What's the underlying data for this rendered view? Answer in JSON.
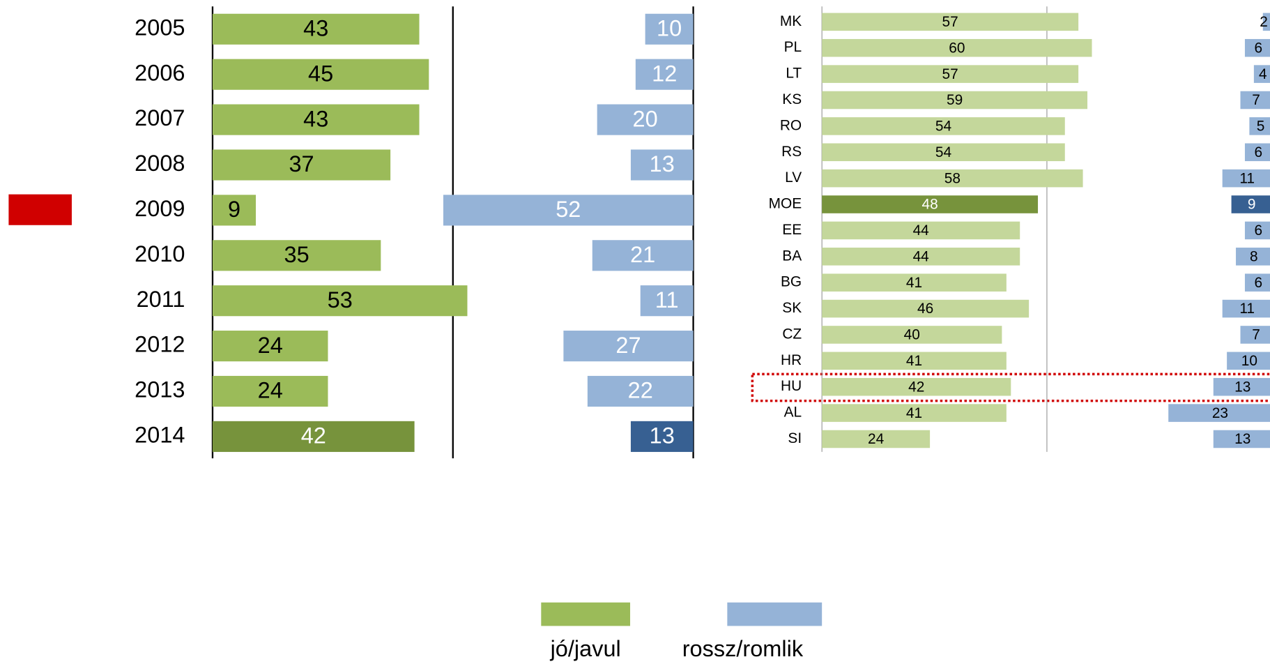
{
  "chart_data": [
    {
      "type": "diverging-bar",
      "categories": [
        "2005",
        "2006",
        "2007",
        "2008",
        "2009",
        "2010",
        "2011",
        "2012",
        "2013",
        "2014"
      ],
      "series": [
        {
          "name": "jó/javul",
          "color": "#9bbb59",
          "highlight_color": "#77933c",
          "values": [
            43,
            45,
            43,
            37,
            9,
            35,
            53,
            24,
            24,
            42
          ]
        },
        {
          "name": "rossz/romlik",
          "color": "#95b3d7",
          "highlight_color": "#376092",
          "values": [
            10,
            12,
            20,
            13,
            52,
            21,
            11,
            27,
            22,
            13
          ]
        }
      ],
      "highlight": 9,
      "xlim": [
        0,
        100
      ],
      "xticks": [
        0,
        50,
        100
      ]
    },
    {
      "type": "diverging-bar",
      "categories": [
        "MK",
        "PL",
        "LT",
        "KS",
        "RO",
        "RS",
        "LV",
        "MOE",
        "EE",
        "BA",
        "BG",
        "SK",
        "CZ",
        "HR",
        "HU",
        "AL",
        "SI"
      ],
      "series": [
        {
          "name": "jó/javul",
          "color": "#c4d79b",
          "highlight_color": "#77933c",
          "values": [
            57,
            60,
            57,
            59,
            54,
            54,
            58,
            48,
            44,
            44,
            41,
            46,
            40,
            41,
            42,
            41,
            24
          ]
        },
        {
          "name": "rossz/romlik",
          "color": "#95b3d7",
          "highlight_color": "#376092",
          "values": [
            2,
            6,
            4,
            7,
            5,
            6,
            11,
            9,
            6,
            8,
            6,
            11,
            7,
            10,
            13,
            23,
            13
          ]
        }
      ],
      "highlight": 7,
      "xlim": [
        0,
        100
      ],
      "xticks": [
        0,
        50
      ]
    }
  ]
}
